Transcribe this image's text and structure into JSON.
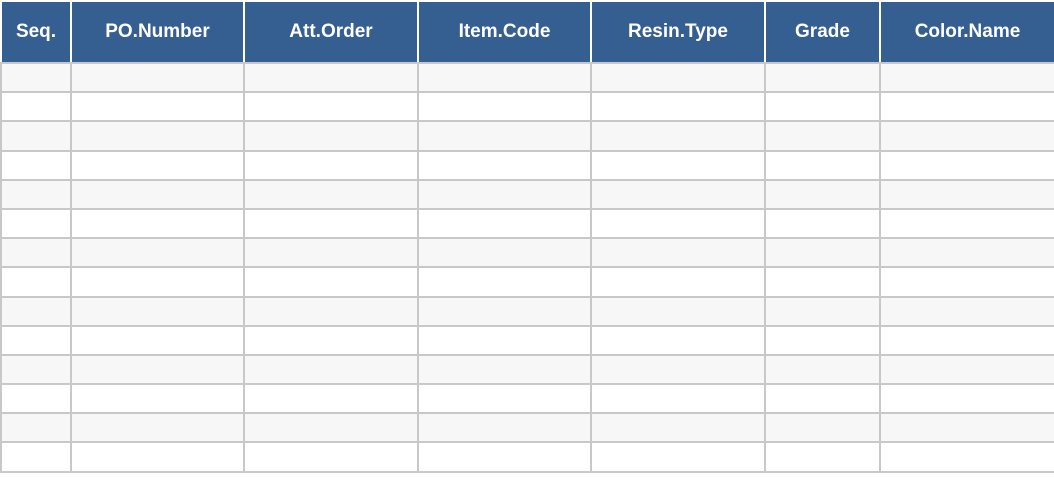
{
  "table": {
    "header_color": "#365f91",
    "columns": [
      "Seq.",
      "PO.Number",
      "Att.Order",
      "Item.Code",
      "Resin.Type",
      "Grade",
      "Color.Name"
    ],
    "row_count": 14,
    "rows": []
  }
}
